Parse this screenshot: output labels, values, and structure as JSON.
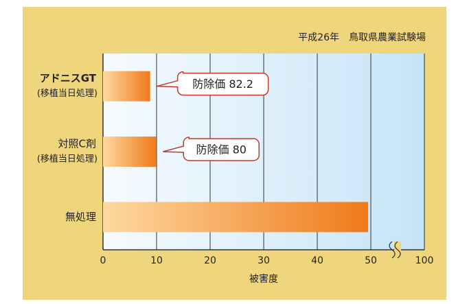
{
  "chart_data": {
    "type": "barh",
    "subtitle": "平成26年　鳥取県農業試験場",
    "categories": [
      "アドニスGT",
      "対照C剤",
      "無処理"
    ],
    "category_notes": [
      "(移植当日処理)",
      "(移植当日処理)",
      null
    ],
    "values": [
      8.8,
      9.9,
      49.5
    ],
    "annotations": [
      "防除価 82.2",
      "防除価 80"
    ],
    "xlabel": "被害度",
    "xlim": [
      0,
      100
    ],
    "xticks": [
      0,
      10,
      20,
      30,
      40,
      50,
      100
    ],
    "x_break": [
      55,
      95
    ],
    "grid": true,
    "color": [
      "#fdd9a0",
      "#f07a1a"
    ]
  }
}
